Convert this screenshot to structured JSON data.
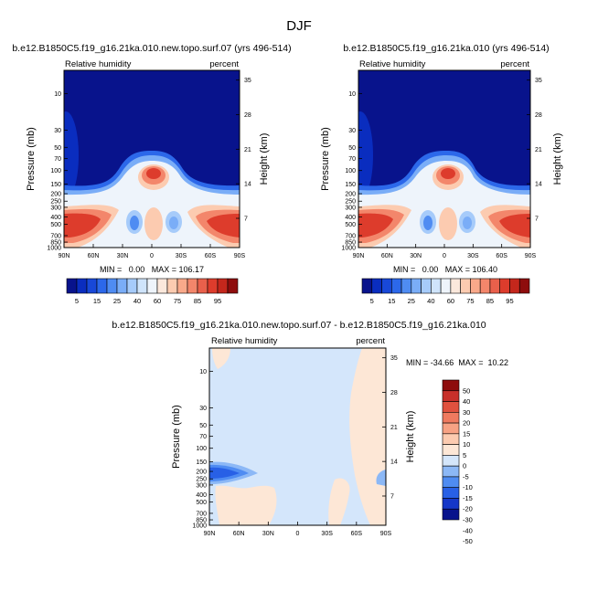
{
  "page_title": "DJF",
  "colors": {
    "scale": [
      "#08138c",
      "#0a2dbf",
      "#1848d8",
      "#2c68ea",
      "#4f8cf2",
      "#7aadf7",
      "#a6cbfa",
      "#cfe4fb",
      "#eef4fb",
      "#fbe8dc",
      "#fccbb0",
      "#f9a98a",
      "#f3866b",
      "#e9604b",
      "#dd3c2c",
      "#c4271c",
      "#8e0d0d"
    ],
    "diff_scale": [
      "#08138c",
      "#1537c8",
      "#2860e6",
      "#4f8cf2",
      "#8cb8f6",
      "#d4e6fb",
      "#fde7d6",
      "#fccbb0",
      "#f7a284",
      "#ef7a5f",
      "#e0513e",
      "#c8302a",
      "#8e0d0d"
    ]
  },
  "chart_data": [
    {
      "type": "heatmap",
      "panel": "top-left",
      "title": "b.e12.B1850C5.f19_g16.21ka.010.new.topo.surf.07 (yrs 496-514)",
      "left_label": "Relative humidity",
      "right_label": "percent",
      "xlabel": "",
      "ylabel": "Pressure (mb)",
      "y2label": "Height (km)",
      "x_ticks": [
        "90N",
        "60N",
        "30N",
        "0",
        "30S",
        "60S",
        "90S"
      ],
      "y_ticks": [
        "10",
        "30",
        "50",
        "70",
        "100",
        "150",
        "200",
        "250",
        "300",
        "400",
        "500",
        "700",
        "850",
        "1000"
      ],
      "y2_ticks": [
        "35",
        "28",
        "21",
        "14",
        "7"
      ],
      "stats_text": "MIN =   0.00   MAX = 106.17",
      "min": 0.0,
      "max": 106.17,
      "levels": [
        "5",
        "15",
        "25",
        "40",
        "60",
        "75",
        "85",
        "95"
      ]
    },
    {
      "type": "heatmap",
      "panel": "top-right",
      "title": "b.e12.B1850C5.f19_g16.21ka.010 (yrs 496-514)",
      "left_label": "Relative humidity",
      "right_label": "percent",
      "xlabel": "",
      "ylabel": "Pressure (mb)",
      "y2label": "Height (km)",
      "x_ticks": [
        "90N",
        "60N",
        "30N",
        "0",
        "30S",
        "60S",
        "90S"
      ],
      "y_ticks": [
        "10",
        "30",
        "50",
        "70",
        "100",
        "150",
        "200",
        "250",
        "300",
        "400",
        "500",
        "700",
        "850",
        "1000"
      ],
      "y2_ticks": [
        "35",
        "28",
        "21",
        "14",
        "7"
      ],
      "stats_text": "MIN =   0.00   MAX = 106.40",
      "min": 0.0,
      "max": 106.4,
      "levels": [
        "5",
        "15",
        "25",
        "40",
        "60",
        "75",
        "85",
        "95"
      ]
    },
    {
      "type": "heatmap",
      "panel": "bottom",
      "title": "b.e12.B1850C5.f19_g16.21ka.010.new.topo.surf.07 - b.e12.B1850C5.f19_g16.21ka.010",
      "left_label": "Relative humidity",
      "right_label": "percent",
      "xlabel": "",
      "ylabel": "Pressure (mb)",
      "y2label": "Height (km)",
      "x_ticks": [
        "90N",
        "60N",
        "30N",
        "0",
        "30S",
        "60S",
        "90S"
      ],
      "y_ticks": [
        "10",
        "30",
        "50",
        "70",
        "100",
        "150",
        "200",
        "250",
        "300",
        "400",
        "500",
        "700",
        "850",
        "1000"
      ],
      "y2_ticks": [
        "35",
        "28",
        "21",
        "14",
        "7"
      ],
      "stats_text": "MIN = -34.66  MAX =  10.22",
      "min": -34.66,
      "max": 10.22,
      "levels": [
        "50",
        "40",
        "30",
        "20",
        "15",
        "10",
        "5",
        "0",
        "-5",
        "-10",
        "-15",
        "-20",
        "-30",
        "-40",
        "-50"
      ]
    }
  ]
}
